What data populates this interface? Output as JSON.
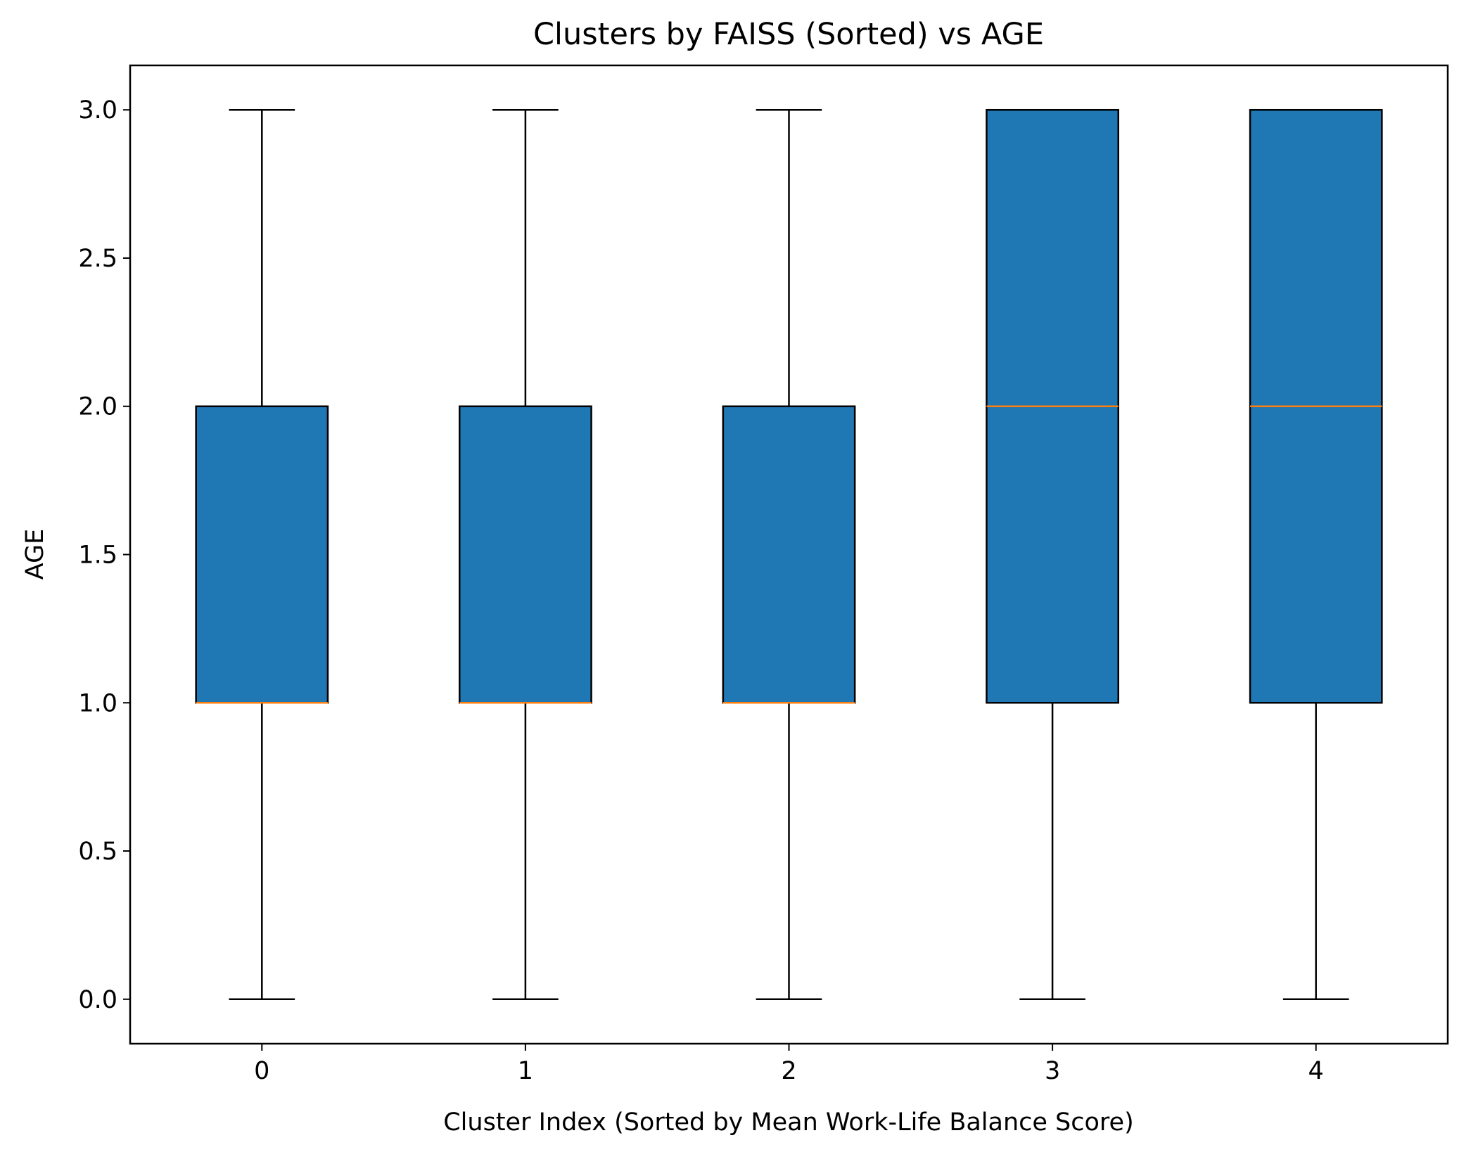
{
  "chart_data": {
    "type": "box",
    "title": "Clusters by FAISS (Sorted) vs AGE",
    "xlabel": "Cluster Index (Sorted by Mean Work-Life Balance Score)",
    "ylabel": "AGE",
    "ylim": [
      -0.15,
      3.15
    ],
    "yticks": [
      "0.0",
      "0.5",
      "1.0",
      "1.5",
      "2.0",
      "2.5",
      "3.0"
    ],
    "ytick_values": [
      0.0,
      0.5,
      1.0,
      1.5,
      2.0,
      2.5,
      3.0
    ],
    "categories": [
      "0",
      "1",
      "2",
      "3",
      "4"
    ],
    "boxes": [
      {
        "category": "0",
        "whisker_low": 0,
        "q1": 1,
        "median": 1,
        "q3": 2,
        "whisker_high": 3
      },
      {
        "category": "1",
        "whisker_low": 0,
        "q1": 1,
        "median": 1,
        "q3": 2,
        "whisker_high": 3
      },
      {
        "category": "2",
        "whisker_low": 0,
        "q1": 1,
        "median": 1,
        "q3": 2,
        "whisker_high": 3
      },
      {
        "category": "3",
        "whisker_low": 0,
        "q1": 1,
        "median": 2,
        "q3": 3,
        "whisker_high": 3
      },
      {
        "category": "4",
        "whisker_low": 0,
        "q1": 1,
        "median": 2,
        "q3": 3,
        "whisker_high": 3
      }
    ],
    "grid": false,
    "colors": {
      "box_fill": "#1f77b4",
      "median": "#ff7f0e",
      "edge": "#000000"
    }
  }
}
